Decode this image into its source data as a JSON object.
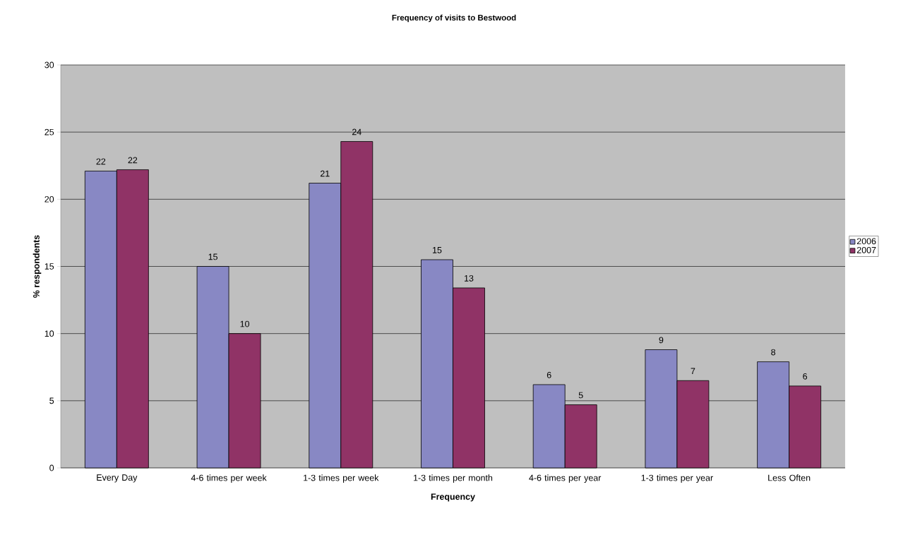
{
  "chart_data": {
    "type": "bar",
    "title": "Frequency of visits to Bestwood",
    "xlabel": "Frequency",
    "ylabel": "% respondents",
    "categories": [
      "Every Day",
      "4-6 times per week",
      "1-3 times per week",
      "1-3 times per month",
      "4-6 times per year",
      "1-3 times per year",
      "Less Often"
    ],
    "series": [
      {
        "name": "2006",
        "color": "#8888c4",
        "values": [
          22.1,
          15.0,
          21.2,
          15.5,
          6.2,
          8.8,
          7.9
        ],
        "value_labels": [
          "22",
          "15",
          "21",
          "15",
          "6",
          "9",
          "8"
        ]
      },
      {
        "name": "2007",
        "color": "#903366",
        "values": [
          22.2,
          10.0,
          24.3,
          13.4,
          4.7,
          6.5,
          6.1
        ],
        "value_labels": [
          "22",
          "10",
          "24",
          "13",
          "5",
          "7",
          "6"
        ]
      }
    ],
    "ylim": [
      0,
      30
    ],
    "yticks": [
      0,
      5,
      10,
      15,
      20,
      25,
      30
    ],
    "grid": "y",
    "legend": "right"
  }
}
